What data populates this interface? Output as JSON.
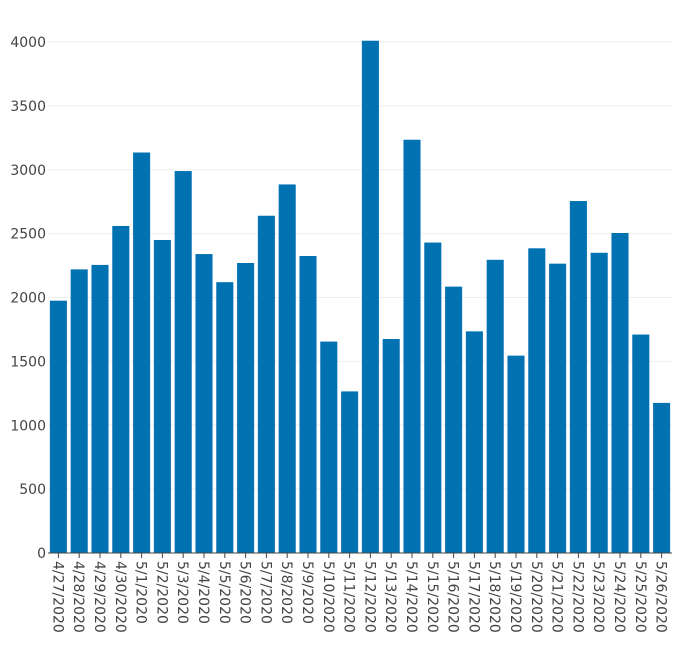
{
  "chart_data": {
    "type": "bar",
    "title": "",
    "xlabel": "",
    "ylabel": "",
    "bar_color": "#0072b2",
    "grid": true,
    "ylim": [
      0,
      4000
    ],
    "yticks": [
      0,
      500,
      1000,
      1500,
      2000,
      2500,
      3000,
      3500,
      4000
    ],
    "categories": [
      "4/27/2020",
      "4/28/2020",
      "4/29/2020",
      "4/30/2020",
      "5/1/2020",
      "5/2/2020",
      "5/3/2020",
      "5/4/2020",
      "5/5/2020",
      "5/6/2020",
      "5/7/2020",
      "5/8/2020",
      "5/9/2020",
      "5/10/2020",
      "5/11/2020",
      "5/12/2020",
      "5/13/2020",
      "5/14/2020",
      "5/15/2020",
      "5/16/2020",
      "5/17/2020",
      "5/18/2020",
      "5/19/2020",
      "5/20/2020",
      "5/21/2020",
      "5/22/2020",
      "5/23/2020",
      "5/24/2020",
      "5/25/2020",
      "5/26/2020"
    ],
    "values": [
      1975,
      2220,
      2255,
      2560,
      3135,
      2450,
      2990,
      2340,
      2120,
      2270,
      2640,
      2885,
      2325,
      1655,
      1265,
      4010,
      1675,
      3235,
      2430,
      2085,
      1735,
      2295,
      1545,
      2385,
      2265,
      2755,
      2350,
      2505,
      1710,
      1175
    ]
  }
}
